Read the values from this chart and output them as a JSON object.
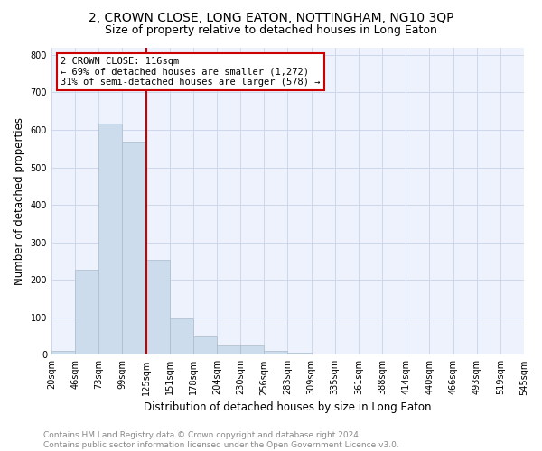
{
  "title": "2, CROWN CLOSE, LONG EATON, NOTTINGHAM, NG10 3QP",
  "subtitle": "Size of property relative to detached houses in Long Eaton",
  "xlabel": "Distribution of detached houses by size in Long Eaton",
  "ylabel": "Number of detached properties",
  "bar_values": [
    10,
    226,
    617,
    568,
    253,
    97,
    49,
    25,
    25,
    10,
    5,
    0,
    0,
    0,
    0,
    0,
    0,
    0,
    0,
    0
  ],
  "bar_labels": [
    "20sqm",
    "46sqm",
    "73sqm",
    "99sqm",
    "125sqm",
    "151sqm",
    "178sqm",
    "204sqm",
    "230sqm",
    "256sqm",
    "283sqm",
    "309sqm",
    "335sqm",
    "361sqm",
    "388sqm",
    "414sqm",
    "440sqm",
    "466sqm",
    "493sqm",
    "519sqm",
    "545sqm"
  ],
  "bar_color": "#ccdcec",
  "bar_edgecolor": "#aabccc",
  "bar_width": 1.0,
  "property_line_x": 4,
  "annotation_title": "2 CROWN CLOSE: 116sqm",
  "annotation_line1": "← 69% of detached houses are smaller (1,272)",
  "annotation_line2": "31% of semi-detached houses are larger (578) →",
  "annotation_box_color": "#cc0000",
  "ylim": [
    0,
    820
  ],
  "yticks": [
    0,
    100,
    200,
    300,
    400,
    500,
    600,
    700,
    800
  ],
  "grid_color": "#ccd8ec",
  "background_color": "#eef2fc",
  "footer_line1": "Contains HM Land Registry data © Crown copyright and database right 2024.",
  "footer_line2": "Contains public sector information licensed under the Open Government Licence v3.0.",
  "title_fontsize": 10,
  "subtitle_fontsize": 9,
  "xlabel_fontsize": 8.5,
  "ylabel_fontsize": 8.5,
  "tick_fontsize": 7,
  "annotation_fontsize": 7.5,
  "footer_fontsize": 6.5
}
